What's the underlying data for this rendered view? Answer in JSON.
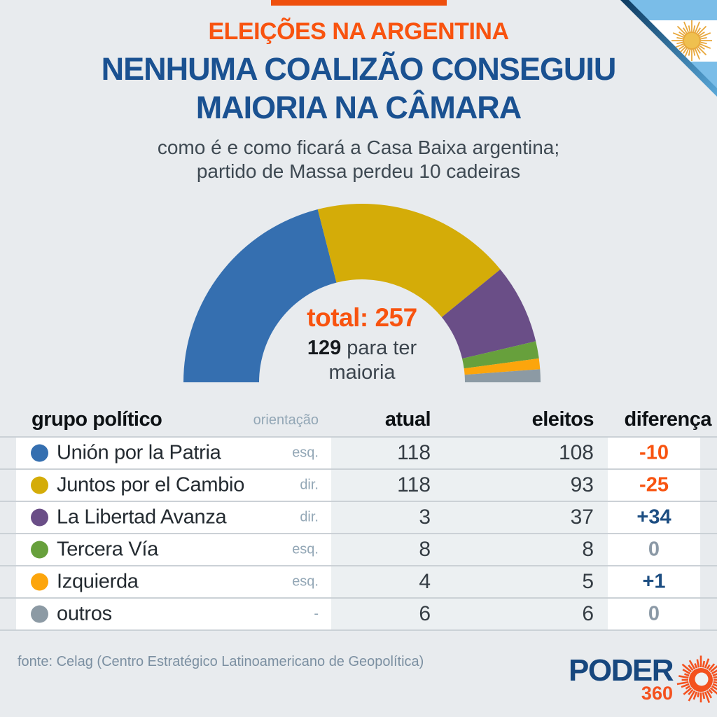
{
  "page": {
    "background": "#e8ebee",
    "accent_orange": "#f8530f",
    "heading_blue": "#1a5191"
  },
  "header": {
    "kicker": "ELEIÇÕES NA ARGENTINA",
    "title_line1": "NENHUMA COALIZÃO CONSEGUIU",
    "title_line2": "MAIORIA NA CÂMARA",
    "subtitle_line1": "como é e como ficará a Casa Baixa argentina;",
    "subtitle_line2": "partido de Massa perdeu 10 cadeiras"
  },
  "flag": {
    "country": "argentina",
    "stripe_blue": "#7abde8",
    "stripe_white": "#ffffff",
    "sun_gold": "#e8a83c"
  },
  "chart_data": {
    "type": "donut",
    "shape": "semicircle",
    "categories": [
      "Unión por la Patria",
      "Juntos por el Cambio",
      "La Libertad Avanza",
      "Tercera Vía",
      "Izquierda",
      "outros"
    ],
    "values": [
      108,
      93,
      37,
      8,
      5,
      6
    ],
    "colors": [
      "#356fb0",
      "#d4ac08",
      "#6a4e87",
      "#67a03c",
      "#fca50c",
      "#8c9aa4"
    ],
    "total": 257,
    "majority_needed": 129,
    "legend_position": "none",
    "center": {
      "total_label": "total: 257",
      "majority_value": "129",
      "majority_rest": "para ter",
      "majority_line2": "maioria"
    }
  },
  "table": {
    "headers": {
      "group": "grupo político",
      "orientation": "orientação",
      "current": "atual",
      "elected": "eleitos",
      "difference": "diferença"
    },
    "rows": [
      {
        "name": "Unión por la Patria",
        "color": "#356fb0",
        "orientation": "esq.",
        "atual": "118",
        "eleitos": "108",
        "diff": "-10",
        "diff_type": "negative"
      },
      {
        "name": "Juntos por el Cambio",
        "color": "#d4ac08",
        "orientation": "dir.",
        "atual": "118",
        "eleitos": "93",
        "diff": "-25",
        "diff_type": "negative"
      },
      {
        "name": "La Libertad Avanza",
        "color": "#6a4e87",
        "orientation": "dir.",
        "atual": "3",
        "eleitos": "37",
        "diff": "+34",
        "diff_type": "positive"
      },
      {
        "name": "Tercera Vía",
        "color": "#67a03c",
        "orientation": "esq.",
        "atual": "8",
        "eleitos": "8",
        "diff": "0",
        "diff_type": "zero"
      },
      {
        "name": "Izquierda",
        "color": "#fca50c",
        "orientation": "esq.",
        "atual": "4",
        "eleitos": "5",
        "diff": "+1",
        "diff_type": "positive"
      },
      {
        "name": "outros",
        "color": "#8c9aa4",
        "orientation": "-",
        "atual": "6",
        "eleitos": "6",
        "diff": "0",
        "diff_type": "zero"
      }
    ],
    "diff_colors": {
      "negative": "#f8530f",
      "positive": "#1d4e82",
      "zero": "#8b99a6"
    }
  },
  "footer": {
    "source": "fonte: Celag (Centro Estratégico Latinoamericano de Geopolítica)",
    "logo_word": "PODER",
    "logo_number": "360",
    "logo_navy": "#17477e",
    "logo_orange": "#f4511e"
  }
}
